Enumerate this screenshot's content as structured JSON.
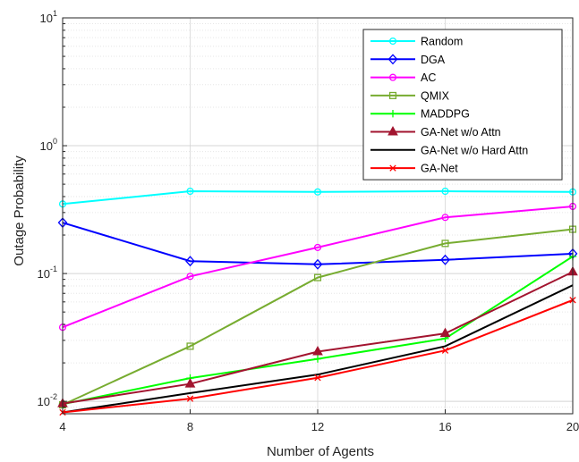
{
  "chart_data": {
    "type": "line",
    "title": "",
    "xlabel": "Number of Agents",
    "ylabel": "Outage Probability",
    "x": [
      4,
      8,
      12,
      16,
      20
    ],
    "xticks": [
      "4",
      "8",
      "12",
      "16",
      "20"
    ],
    "xlim": [
      4,
      20
    ],
    "yscale": "log",
    "ylim": [
      0.008,
      10
    ],
    "yticks": [
      {
        "value": 0.01,
        "base": "10",
        "exp": "-2"
      },
      {
        "value": 0.1,
        "base": "10",
        "exp": "-1"
      },
      {
        "value": 1,
        "base": "10",
        "exp": "0"
      },
      {
        "value": 10,
        "base": "10",
        "exp": "1"
      }
    ],
    "grid": true,
    "legend_position": "top-right",
    "series": [
      {
        "name": "Random",
        "color": "#00ffff",
        "marker": "circle",
        "values": [
          0.35,
          0.44,
          0.435,
          0.44,
          0.435
        ]
      },
      {
        "name": "DGA",
        "color": "#0000ff",
        "marker": "diamond",
        "values": [
          0.25,
          0.125,
          0.118,
          0.128,
          0.143
        ]
      },
      {
        "name": "AC",
        "color": "#ff00ff",
        "marker": "circle",
        "values": [
          0.038,
          0.095,
          0.16,
          0.275,
          0.335
        ]
      },
      {
        "name": "QMIX",
        "color": "#77ac30",
        "marker": "square",
        "values": [
          0.0094,
          0.027,
          0.093,
          0.172,
          0.222
        ]
      },
      {
        "name": "MADDPG",
        "color": "#00ff00",
        "marker": "plus",
        "values": [
          0.0095,
          0.0152,
          0.0215,
          0.031,
          0.136
        ]
      },
      {
        "name": "GA-Net w/o Attn",
        "color": "#a2142f",
        "marker": "triangle",
        "values": [
          0.0096,
          0.0137,
          0.0245,
          0.034,
          0.103
        ]
      },
      {
        "name": "GA-Net w/o Hard Attn",
        "color": "#000000",
        "marker": "none",
        "values": [
          0.0082,
          0.0116,
          0.0162,
          0.027,
          0.081
        ]
      },
      {
        "name": "GA-Net",
        "color": "#ff0000",
        "marker": "x",
        "values": [
          0.0082,
          0.0105,
          0.0153,
          0.025,
          0.062
        ]
      }
    ]
  }
}
